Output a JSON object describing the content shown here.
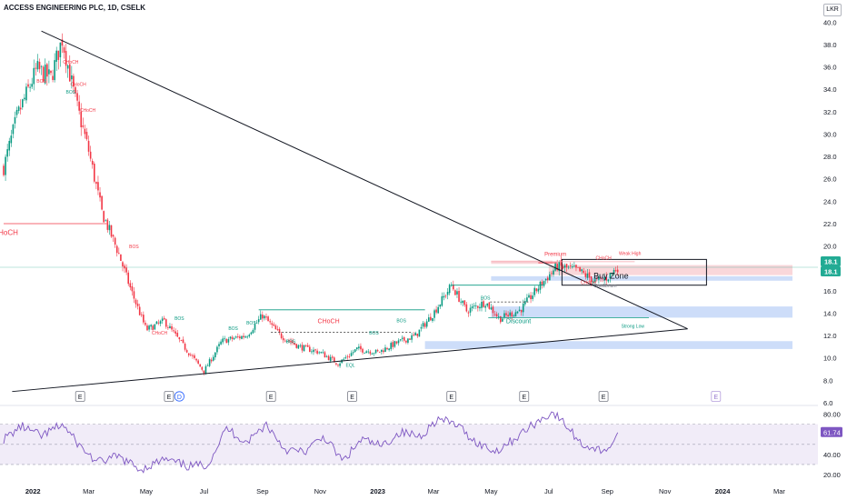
{
  "header": {
    "title": "ACCESS ENGINEERING PLC, 1D, CSELK",
    "currency": "LKR"
  },
  "chart_data": [
    {
      "type": "candlestick",
      "title": "ACCESS ENGINEERING PLC, 1D, CSELK",
      "price_axis": {
        "ylim": [
          6,
          41
        ],
        "ticks": [
          "40.0",
          "38.0",
          "36.0",
          "34.0",
          "32.0",
          "30.0",
          "28.0",
          "26.0",
          "24.0",
          "22.0",
          "20.0",
          "18.0",
          "16.0",
          "14.0",
          "12.0",
          "10.0",
          "8.0",
          "6.0"
        ]
      },
      "time_axis": {
        "ticks": [
          "2022",
          "Mar",
          "May",
          "Jul",
          "Sep",
          "Nov",
          "2023",
          "Mar",
          "May",
          "Jul",
          "Sep",
          "Nov",
          "2024",
          "Mar"
        ]
      },
      "last_price_labels": [
        "18.1",
        "18.1"
      ],
      "grid": false,
      "series": [
        {
          "name": "price",
          "approx_path": [
            {
              "x": "2021-12-01",
              "y": 27.0
            },
            {
              "x": "2021-12-15",
              "y": 31.5
            },
            {
              "x": "2022-01-05",
              "y": 35.8
            },
            {
              "x": "2022-01-20",
              "y": 35.0
            },
            {
              "x": "2022-02-01",
              "y": 38.5
            },
            {
              "x": "2022-02-15",
              "y": 33.0
            },
            {
              "x": "2022-03-01",
              "y": 28.5
            },
            {
              "x": "2022-03-15",
              "y": 23.0
            },
            {
              "x": "2022-04-01",
              "y": 19.5
            },
            {
              "x": "2022-04-15",
              "y": 16.0
            },
            {
              "x": "2022-05-01",
              "y": 12.5
            },
            {
              "x": "2022-05-20",
              "y": 13.3
            },
            {
              "x": "2022-06-10",
              "y": 11.0
            },
            {
              "x": "2022-07-01",
              "y": 8.8
            },
            {
              "x": "2022-07-20",
              "y": 11.5
            },
            {
              "x": "2022-08-15",
              "y": 12.0
            },
            {
              "x": "2022-09-01",
              "y": 13.8
            },
            {
              "x": "2022-09-20",
              "y": 12.0
            },
            {
              "x": "2022-10-10",
              "y": 11.0
            },
            {
              "x": "2022-11-01",
              "y": 10.5
            },
            {
              "x": "2022-11-20",
              "y": 9.5
            },
            {
              "x": "2022-12-10",
              "y": 10.8
            },
            {
              "x": "2023-01-01",
              "y": 10.5
            },
            {
              "x": "2023-01-20",
              "y": 11.3
            },
            {
              "x": "2023-02-10",
              "y": 12.0
            },
            {
              "x": "2023-03-01",
              "y": 14.0
            },
            {
              "x": "2023-03-20",
              "y": 16.5
            },
            {
              "x": "2023-04-05",
              "y": 14.2
            },
            {
              "x": "2023-04-25",
              "y": 15.0
            },
            {
              "x": "2023-05-10",
              "y": 13.5
            },
            {
              "x": "2023-06-01",
              "y": 14.3
            },
            {
              "x": "2023-06-20",
              "y": 16.3
            },
            {
              "x": "2023-07-10",
              "y": 18.2
            },
            {
              "x": "2023-08-01",
              "y": 17.8
            },
            {
              "x": "2023-08-20",
              "y": 16.8
            },
            {
              "x": "2023-09-01",
              "y": 17.2
            },
            {
              "x": "2023-09-12",
              "y": 18.1
            }
          ]
        }
      ],
      "trendlines": [
        {
          "name": "upper",
          "from": {
            "x": "2022-01-10",
            "y": 39.2
          },
          "to": {
            "x": "2023-11-25",
            "y": 12.6
          }
        },
        {
          "name": "lower",
          "from": {
            "x": "2021-12-10",
            "y": 7.0
          },
          "to": {
            "x": "2023-11-25",
            "y": 12.6
          }
        }
      ],
      "zones": [
        {
          "label": "Buy Zone",
          "y": [
            16.5,
            18.8
          ]
        },
        {
          "label": "Premium",
          "y": [
            18.3,
            18.6
          ]
        },
        {
          "label": "Discount",
          "y": [
            13.6,
            13.8
          ]
        },
        {
          "label": "Weak High",
          "y": [
            18.5,
            18.5
          ]
        },
        {
          "label": "Strong Low",
          "y": [
            13.6,
            13.6
          ]
        }
      ],
      "annotations": [
        "BOS",
        "CHoCH",
        "CHoCH",
        "BOS",
        "CHoCH",
        "CHoCH",
        "BOS",
        "CHoCH",
        "BOS",
        "BOS",
        "BOS",
        "BOS",
        "EQL",
        "CHoCH",
        "BOS",
        "BOS",
        "BOS",
        "CHoCH",
        "CHoCH",
        "Premium",
        "Weak High",
        "Buy Zone",
        "Discount",
        "Strong Low",
        "Equilibrium"
      ],
      "event_markers": [
        "E",
        "E",
        "D",
        "E",
        "E",
        "E",
        "E",
        "E",
        "E"
      ]
    },
    {
      "type": "line",
      "name": "RSI",
      "ylim": [
        20,
        85
      ],
      "ticks": [
        "80.00",
        "60.00",
        "40.00",
        "20.00"
      ],
      "last_value_label": "61.74",
      "series": [
        {
          "name": "rsi",
          "approx_path": [
            {
              "x": "2021-12-01",
              "y": 55
            },
            {
              "x": "2021-12-20",
              "y": 68
            },
            {
              "x": "2022-01-10",
              "y": 58
            },
            {
              "x": "2022-02-01",
              "y": 70
            },
            {
              "x": "2022-02-20",
              "y": 48
            },
            {
              "x": "2022-03-10",
              "y": 32
            },
            {
              "x": "2022-04-01",
              "y": 38
            },
            {
              "x": "2022-04-25",
              "y": 25
            },
            {
              "x": "2022-05-20",
              "y": 35
            },
            {
              "x": "2022-06-15",
              "y": 28
            },
            {
              "x": "2022-07-05",
              "y": 30
            },
            {
              "x": "2022-07-25",
              "y": 66
            },
            {
              "x": "2022-08-15",
              "y": 52
            },
            {
              "x": "2022-09-05",
              "y": 70
            },
            {
              "x": "2022-09-25",
              "y": 45
            },
            {
              "x": "2022-10-15",
              "y": 42
            },
            {
              "x": "2022-11-05",
              "y": 58
            },
            {
              "x": "2022-11-25",
              "y": 33
            },
            {
              "x": "2022-12-15",
              "y": 55
            },
            {
              "x": "2023-01-05",
              "y": 48
            },
            {
              "x": "2023-01-25",
              "y": 62
            },
            {
              "x": "2023-02-15",
              "y": 58
            },
            {
              "x": "2023-03-05",
              "y": 75
            },
            {
              "x": "2023-03-25",
              "y": 70
            },
            {
              "x": "2023-04-15",
              "y": 52
            },
            {
              "x": "2023-05-05",
              "y": 43
            },
            {
              "x": "2023-05-25",
              "y": 55
            },
            {
              "x": "2023-06-15",
              "y": 70
            },
            {
              "x": "2023-07-05",
              "y": 82
            },
            {
              "x": "2023-07-20",
              "y": 68
            },
            {
              "x": "2023-08-05",
              "y": 50
            },
            {
              "x": "2023-08-25",
              "y": 44
            },
            {
              "x": "2023-09-05",
              "y": 48
            },
            {
              "x": "2023-09-12",
              "y": 61.74
            }
          ]
        }
      ]
    }
  ],
  "colors": {
    "up": "#089981",
    "down": "#f23645",
    "trendline": "#131722",
    "zone_blue": "#bcd1f7",
    "zone_red": "#f7c9ce",
    "rsi_line": "#7e57c2",
    "rsi_band": "#ede7f6",
    "price_label": "#22ab94",
    "rsi_label": "#7e57c2",
    "bos_green": "#089981",
    "choch_red": "#f23645"
  }
}
